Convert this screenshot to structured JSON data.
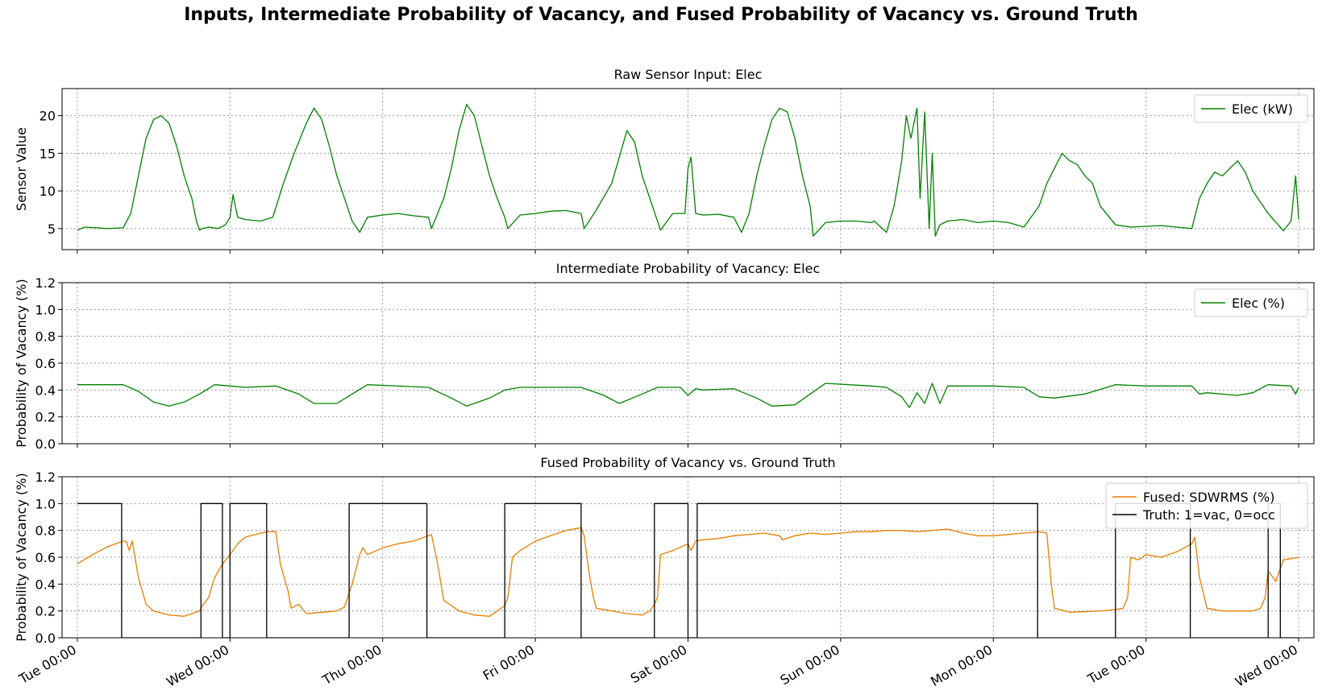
{
  "suptitle": "Inputs, Intermediate Probability of Vacancy, and Fused Probability of Vacancy vs. Ground Truth",
  "colors": {
    "elec": "#008000",
    "fused": "#e67e00",
    "truth": "#000000",
    "grid": "#999999"
  },
  "chart_data": [
    {
      "type": "line",
      "title": "Raw Sensor Input: Elec",
      "ylabel": "Sensor Value",
      "ylim": [
        2.2,
        23.6
      ],
      "yticks": [
        5,
        10,
        15,
        20
      ],
      "ytick_labels": [
        "5",
        "10",
        "15",
        "20"
      ],
      "xlim": [
        -0.1,
        8.1
      ],
      "grid": true,
      "legend_position": "upper right",
      "series": [
        {
          "name": "Elec (kW)",
          "color": "#008000",
          "x": [
            0,
            0.05,
            0.2,
            0.3,
            0.35,
            0.38,
            0.42,
            0.45,
            0.5,
            0.55,
            0.6,
            0.65,
            0.7,
            0.75,
            0.78,
            0.8,
            0.82,
            0.86,
            0.92,
            0.97,
            1.0,
            1.02,
            1.05,
            1.1,
            1.2,
            1.28,
            1.35,
            1.42,
            1.5,
            1.55,
            1.6,
            1.65,
            1.7,
            1.75,
            1.8,
            1.85,
            1.9,
            2.0,
            2.1,
            2.2,
            2.3,
            2.32,
            2.4,
            2.45,
            2.5,
            2.55,
            2.6,
            2.65,
            2.7,
            2.75,
            2.8,
            2.82,
            2.9,
            3.0,
            3.1,
            3.2,
            3.3,
            3.32,
            3.4,
            3.5,
            3.55,
            3.6,
            3.65,
            3.7,
            3.75,
            3.8,
            3.82,
            3.9,
            3.98,
            4.0,
            4.02,
            4.05,
            4.1,
            4.2,
            4.3,
            4.35,
            4.4,
            4.45,
            4.5,
            4.55,
            4.6,
            4.65,
            4.7,
            4.75,
            4.8,
            4.82,
            4.9,
            5.0,
            5.1,
            5.2,
            5.22,
            5.3,
            5.35,
            5.4,
            5.43,
            5.46,
            5.5,
            5.52,
            5.55,
            5.58,
            5.6,
            5.62,
            5.65,
            5.7,
            5.8,
            5.9,
            6.0,
            6.1,
            6.2,
            6.3,
            6.35,
            6.4,
            6.45,
            6.5,
            6.55,
            6.6,
            6.65,
            6.7,
            6.8,
            6.9,
            7.0,
            7.1,
            7.2,
            7.3,
            7.35,
            7.4,
            7.45,
            7.5,
            7.55,
            7.6,
            7.65,
            7.7,
            7.8,
            7.9,
            7.95,
            7.98,
            8.0
          ],
          "y": [
            4.8,
            5.2,
            5.0,
            5.1,
            7.0,
            10.0,
            14.0,
            17.0,
            19.5,
            20.0,
            19.0,
            16.0,
            12.0,
            9.0,
            6.0,
            4.8,
            5.0,
            5.2,
            5.0,
            5.5,
            6.5,
            9.5,
            6.5,
            6.2,
            6.0,
            6.5,
            11.0,
            15.0,
            19.0,
            21.0,
            19.5,
            16.0,
            12.0,
            9.0,
            6.0,
            4.5,
            6.5,
            6.8,
            7.0,
            6.7,
            6.5,
            5.0,
            9.0,
            13.0,
            18.0,
            21.5,
            20.0,
            16.0,
            12.0,
            9.0,
            6.5,
            5.0,
            6.8,
            7.0,
            7.3,
            7.4,
            7.0,
            5.0,
            7.5,
            11.0,
            14.5,
            18.0,
            16.5,
            12.0,
            9.0,
            6.0,
            4.8,
            7.0,
            7.0,
            13.0,
            14.5,
            7.0,
            6.8,
            6.9,
            6.5,
            4.5,
            7.0,
            12.0,
            16.0,
            19.5,
            21.0,
            20.5,
            17.0,
            12.0,
            8.0,
            4.0,
            5.8,
            6.0,
            6.0,
            5.8,
            6.0,
            4.5,
            8.0,
            14.0,
            20.0,
            17.0,
            21.0,
            9.0,
            20.5,
            5.0,
            15.0,
            4.0,
            5.5,
            6.0,
            6.2,
            5.8,
            6.0,
            5.8,
            5.2,
            8.0,
            11.0,
            13.0,
            15.0,
            14.0,
            13.5,
            12.0,
            11.0,
            8.0,
            5.5,
            5.2,
            5.3,
            5.4,
            5.2,
            5.0,
            9.0,
            11.0,
            12.5,
            12.0,
            13.0,
            14.0,
            12.5,
            10.0,
            7.0,
            4.7,
            6.0,
            12.0,
            6.2
          ]
        }
      ]
    },
    {
      "type": "line",
      "title": "Intermediate Probability of Vacancy: Elec",
      "ylabel": "Probability of Vacancy (%)",
      "ylim": [
        0.0,
        1.2
      ],
      "yticks": [
        0.0,
        0.2,
        0.4,
        0.6,
        0.8,
        1.0,
        1.2
      ],
      "ytick_labels": [
        "0.0",
        "0.2",
        "0.4",
        "0.6",
        "0.8",
        "1.0",
        "1.2"
      ],
      "xlim": [
        -0.1,
        8.1
      ],
      "grid": true,
      "legend_position": "upper right",
      "series": [
        {
          "name": "Elec (%)",
          "color": "#008000",
          "x": [
            0,
            0.3,
            0.4,
            0.5,
            0.6,
            0.7,
            0.8,
            0.9,
            1.0,
            1.1,
            1.3,
            1.45,
            1.55,
            1.7,
            1.8,
            1.9,
            2.3,
            2.45,
            2.55,
            2.7,
            2.8,
            2.9,
            3.3,
            3.45,
            3.55,
            3.7,
            3.8,
            3.95,
            4.0,
            4.05,
            4.1,
            4.3,
            4.45,
            4.55,
            4.7,
            4.8,
            4.9,
            5.2,
            5.3,
            5.4,
            5.45,
            5.5,
            5.55,
            5.6,
            5.65,
            5.7,
            6.0,
            6.2,
            6.3,
            6.4,
            6.6,
            6.8,
            7.0,
            7.3,
            7.35,
            7.4,
            7.6,
            7.7,
            7.8,
            7.95,
            7.98,
            8.0
          ],
          "y": [
            0.44,
            0.44,
            0.39,
            0.31,
            0.28,
            0.31,
            0.37,
            0.44,
            0.43,
            0.42,
            0.43,
            0.37,
            0.3,
            0.3,
            0.37,
            0.44,
            0.42,
            0.34,
            0.28,
            0.34,
            0.4,
            0.42,
            0.42,
            0.36,
            0.3,
            0.37,
            0.42,
            0.42,
            0.36,
            0.41,
            0.4,
            0.41,
            0.34,
            0.28,
            0.29,
            0.37,
            0.45,
            0.43,
            0.42,
            0.35,
            0.27,
            0.38,
            0.3,
            0.45,
            0.3,
            0.43,
            0.43,
            0.42,
            0.35,
            0.34,
            0.37,
            0.44,
            0.43,
            0.43,
            0.37,
            0.38,
            0.36,
            0.38,
            0.44,
            0.43,
            0.37,
            0.42
          ]
        }
      ]
    },
    {
      "type": "line",
      "title": "Fused Probability of Vacancy vs. Ground Truth",
      "ylabel": "Probability of Vacancy (%)",
      "ylim": [
        0.0,
        1.2
      ],
      "yticks": [
        0.0,
        0.2,
        0.4,
        0.6,
        0.8,
        1.0,
        1.2
      ],
      "ytick_labels": [
        "0.0",
        "0.2",
        "0.4",
        "0.6",
        "0.8",
        "1.0",
        "1.2"
      ],
      "xlim": [
        -0.1,
        8.1
      ],
      "xticks": [
        0,
        1,
        2,
        3,
        4,
        5,
        6,
        7,
        8
      ],
      "xtick_labels": [
        "Tue 00:00",
        "Wed 00:00",
        "Thu 00:00",
        "Fri 00:00",
        "Sat 00:00",
        "Sun 00:00",
        "Mon 00:00",
        "Tue 00:00",
        "Wed 00:00"
      ],
      "grid": true,
      "legend_position": "upper right",
      "series": [
        {
          "name": "Fused: SDWRMS (%)",
          "color": "#e67e00",
          "x": [
            0,
            0.1,
            0.2,
            0.3,
            0.32,
            0.34,
            0.36,
            0.4,
            0.45,
            0.5,
            0.6,
            0.7,
            0.8,
            0.82,
            0.86,
            0.9,
            0.95,
            1.0,
            1.05,
            1.1,
            1.2,
            1.25,
            1.3,
            1.33,
            1.38,
            1.4,
            1.45,
            1.5,
            1.7,
            1.75,
            1.8,
            1.85,
            1.87,
            1.9,
            2.0,
            2.1,
            2.2,
            2.3,
            2.32,
            2.36,
            2.4,
            2.5,
            2.6,
            2.7,
            2.75,
            2.8,
            2.82,
            2.85,
            2.9,
            3.0,
            3.1,
            3.2,
            3.3,
            3.32,
            3.35,
            3.38,
            3.4,
            3.5,
            3.6,
            3.7,
            3.75,
            3.78,
            3.8,
            3.82,
            3.9,
            4.0,
            4.02,
            4.05,
            4.1,
            4.2,
            4.3,
            4.4,
            4.5,
            4.55,
            4.6,
            4.62,
            4.7,
            4.8,
            4.9,
            5.0,
            5.1,
            5.2,
            5.3,
            5.4,
            5.5,
            5.6,
            5.7,
            5.8,
            5.9,
            6.0,
            6.1,
            6.2,
            6.3,
            6.35,
            6.38,
            6.4,
            6.5,
            6.7,
            6.8,
            6.85,
            6.88,
            6.9,
            6.95,
            7.0,
            7.1,
            7.2,
            7.3,
            7.32,
            7.35,
            7.4,
            7.5,
            7.6,
            7.7,
            7.75,
            7.78,
            7.8,
            7.85,
            7.9,
            8.0
          ],
          "y": [
            0.55,
            0.62,
            0.68,
            0.72,
            0.72,
            0.65,
            0.72,
            0.45,
            0.25,
            0.2,
            0.17,
            0.16,
            0.2,
            0.24,
            0.3,
            0.45,
            0.55,
            0.62,
            0.7,
            0.75,
            0.78,
            0.79,
            0.79,
            0.55,
            0.35,
            0.22,
            0.25,
            0.18,
            0.2,
            0.23,
            0.4,
            0.62,
            0.67,
            0.62,
            0.67,
            0.7,
            0.72,
            0.76,
            0.77,
            0.55,
            0.28,
            0.2,
            0.17,
            0.16,
            0.2,
            0.24,
            0.3,
            0.6,
            0.65,
            0.72,
            0.76,
            0.8,
            0.82,
            0.76,
            0.5,
            0.3,
            0.22,
            0.2,
            0.18,
            0.17,
            0.2,
            0.25,
            0.3,
            0.62,
            0.65,
            0.7,
            0.65,
            0.72,
            0.73,
            0.74,
            0.76,
            0.77,
            0.78,
            0.77,
            0.76,
            0.73,
            0.76,
            0.78,
            0.77,
            0.78,
            0.79,
            0.79,
            0.8,
            0.8,
            0.79,
            0.8,
            0.81,
            0.78,
            0.76,
            0.76,
            0.77,
            0.78,
            0.79,
            0.78,
            0.4,
            0.22,
            0.19,
            0.2,
            0.21,
            0.22,
            0.3,
            0.6,
            0.58,
            0.62,
            0.6,
            0.64,
            0.7,
            0.75,
            0.45,
            0.22,
            0.2,
            0.2,
            0.2,
            0.22,
            0.3,
            0.5,
            0.42,
            0.58,
            0.6
          ]
        },
        {
          "name": "Truth: 1=vac, 0=occ",
          "color": "#000000",
          "step": true,
          "x": [
            0,
            0.29,
            0.29,
            0.81,
            0.81,
            0.95,
            0.95,
            1.0,
            1.0,
            1.02,
            1.02,
            1.24,
            1.24,
            1.78,
            1.78,
            2.29,
            2.29,
            2.8,
            2.8,
            3.3,
            3.3,
            3.78,
            3.78,
            4.0,
            4.0,
            4.06,
            4.06,
            4.62,
            4.62,
            6.29,
            6.29,
            6.8,
            6.8,
            7.29,
            7.29,
            7.8,
            7.8,
            7.88,
            7.88,
            7.95,
            7.95,
            8.0
          ],
          "y": [
            1,
            1,
            0,
            0,
            1,
            1,
            0,
            0,
            1,
            1,
            1,
            1,
            0,
            0,
            1,
            1,
            0,
            0,
            1,
            1,
            0,
            0,
            1,
            1,
            0,
            0,
            1,
            1,
            1,
            1,
            0,
            0,
            1,
            1,
            0,
            0,
            1,
            1,
            0,
            0,
            0,
            0
          ]
        }
      ]
    }
  ]
}
